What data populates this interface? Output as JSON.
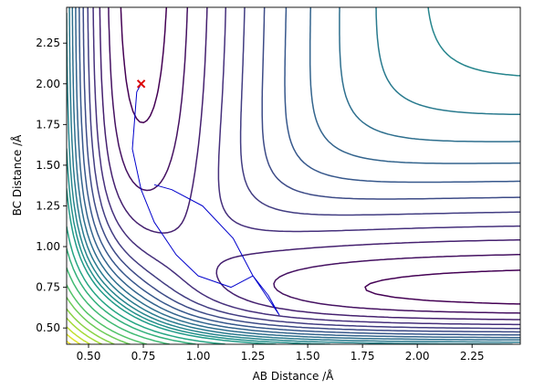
{
  "chart_data": {
    "type": "contour",
    "title": "",
    "xlabel": "AB Distance /Å",
    "ylabel": "BC Distance /Å",
    "xlim": [
      0.4,
      2.47
    ],
    "ylim": [
      0.4,
      2.47
    ],
    "xticks": [
      "0.50",
      "0.75",
      "1.00",
      "1.25",
      "1.50",
      "1.75",
      "2.00",
      "2.25"
    ],
    "yticks": [
      "0.50",
      "0.75",
      "1.00",
      "1.25",
      "1.50",
      "1.75",
      "2.00",
      "2.25"
    ],
    "grid": false,
    "colormap": "viridis",
    "colors": {
      "levels": [
        "#440154",
        "#46327e",
        "#365c8d",
        "#277f8e",
        "#1fa187",
        "#4ac16d",
        "#a0da39",
        "#fde725"
      ],
      "trajectory": "#0000cc",
      "start_marker": "#dd0000"
    },
    "potential": {
      "De_kcal_mol": 100.0,
      "beta_per_angstrom": 1.9,
      "r0_angstrom": 0.74,
      "sato_parameter": 0.0,
      "contour_levels": [
        -95,
        -88,
        -80,
        -72,
        -64,
        -56,
        -48,
        -40,
        -32,
        -24,
        -16,
        -8,
        0,
        15,
        30,
        50,
        75,
        100,
        130,
        160,
        195,
        230,
        270
      ]
    },
    "start_point": {
      "x": 0.74,
      "y": 2.0
    },
    "trajectory": {
      "x": [
        0.74,
        0.72,
        0.7,
        0.74,
        0.8,
        0.9,
        1.0,
        1.15,
        1.25,
        1.37,
        1.32,
        1.25,
        1.16,
        1.02,
        0.88,
        0.8
      ],
      "y": [
        2.0,
        1.95,
        1.6,
        1.35,
        1.15,
        0.95,
        0.82,
        0.75,
        0.82,
        0.58,
        0.7,
        0.82,
        1.05,
        1.25,
        1.35,
        1.38
      ]
    }
  }
}
